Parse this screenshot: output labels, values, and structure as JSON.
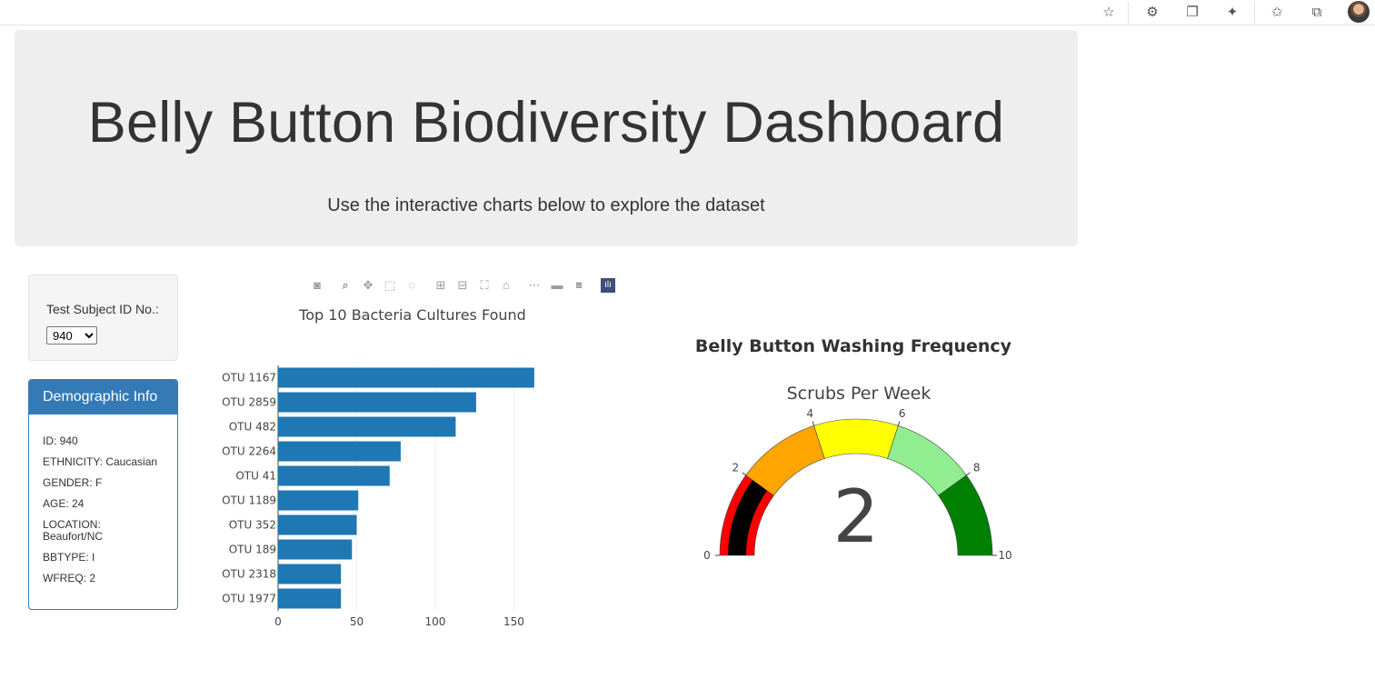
{
  "header": {
    "title": "Belly Button Biodiversity Dashboard",
    "subtitle": "Use the interactive charts below to explore the dataset"
  },
  "selector": {
    "label": "Test Subject ID No.:",
    "selected": "940"
  },
  "demographic": {
    "title": "Demographic Info",
    "rows": [
      "ID: 940",
      "ETHNICITY: Caucasian",
      "GENDER: F",
      "AGE: 24",
      "LOCATION: Beaufort/NC",
      "BBTYPE: I",
      "WFREQ: 2"
    ]
  },
  "modebar_icons": [
    "camera-icon",
    "zoom-icon",
    "pan-icon",
    "box-select-icon",
    "lasso-icon",
    "zoom-in-icon",
    "zoom-out-icon",
    "autoscale-icon",
    "reset-axes-icon",
    "spike-lines-icon",
    "hover-closest-icon",
    "hover-compare-icon",
    "plotly-logo-icon"
  ],
  "browser_icons": [
    "favorite-add-icon",
    "extension-icon",
    "collections-icon",
    "puzzle-icon",
    "favorites-icon",
    "tabs-icon"
  ],
  "chart_data": [
    {
      "type": "bar",
      "orientation": "horizontal",
      "title": "Top 10 Bacteria Cultures Found",
      "categories": [
        "OTU 1167",
        "OTU 2859",
        "OTU 482",
        "OTU 2264",
        "OTU 41",
        "OTU 1189",
        "OTU 352",
        "OTU 189",
        "OTU 2318",
        "OTU 1977"
      ],
      "values": [
        163,
        126,
        113,
        78,
        71,
        51,
        50,
        47,
        40,
        40
      ],
      "xticks": [
        0,
        50,
        100,
        150
      ],
      "xlim": [
        0,
        170
      ],
      "color": "#1f77b4",
      "grid": true
    },
    {
      "type": "gauge",
      "title": "Belly Button Washing Frequency",
      "subtitle": "Scrubs Per Week",
      "value": 2,
      "range": [
        0,
        10
      ],
      "ticks": [
        0,
        2,
        4,
        6,
        8,
        10
      ],
      "steps": [
        {
          "range": [
            0,
            2
          ],
          "color": "#ff0000"
        },
        {
          "range": [
            2,
            4
          ],
          "color": "#ffa500"
        },
        {
          "range": [
            4,
            6
          ],
          "color": "#ffff00"
        },
        {
          "range": [
            6,
            8
          ],
          "color": "#90ee90"
        },
        {
          "range": [
            8,
            10
          ],
          "color": "#008000"
        }
      ],
      "bar_color": "#000000"
    }
  ]
}
